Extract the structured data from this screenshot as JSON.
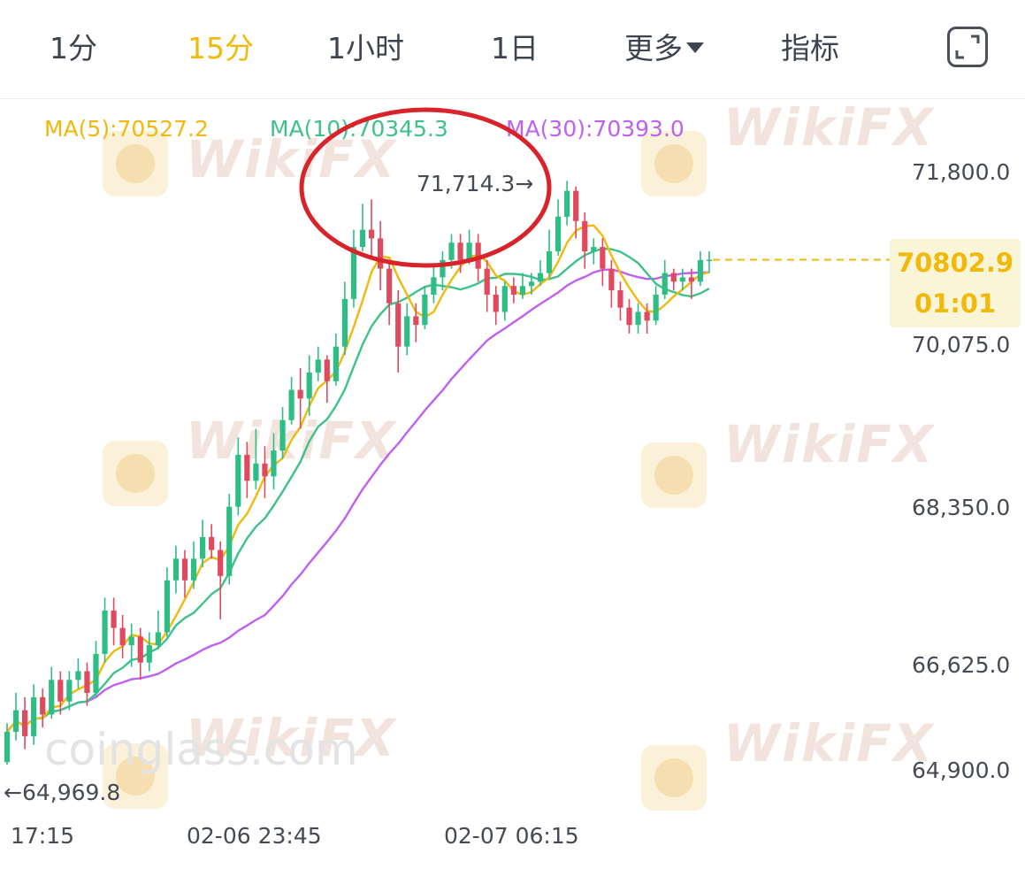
{
  "tabs": [
    "1分",
    "15分",
    "1小时",
    "1日",
    "更多",
    "指标"
  ],
  "active_tab": "15分",
  "ma": {
    "ma5": "MA(5):70527.2",
    "ma10": "MA(10):70345.3",
    "ma30": "MA(30):70393.0"
  },
  "current": {
    "price": "70802.9",
    "countdown": "01:01"
  },
  "annotations": {
    "high": "71,714.3→",
    "low": "←64,969.8"
  },
  "watermarks": {
    "brand": "WikiFX",
    "source": "coinglass.com"
  },
  "colors": {
    "up": "#2ebd85",
    "down": "#e04a5f",
    "ma5": "#f0b90b",
    "ma10": "#3ec28a",
    "ma30": "#c060f0",
    "highlight_circle": "#d8232a"
  },
  "icons": {
    "more_caret": "caret-down-icon",
    "expand": "expand-icon"
  },
  "chart_data": {
    "type": "candlestick",
    "y_tick_labels": [
      "71,800.0",
      "70,075.0",
      "68,350.0",
      "66,625.0",
      "64,900.0"
    ],
    "ylim": [
      64900,
      71800
    ],
    "x_tick_labels": [
      "17:15",
      "02-06 23:45",
      "02-07 06:15"
    ],
    "interval": "15分",
    "high": 71714.3,
    "low": 64969.8,
    "last": 70802.9,
    "candles": [
      [
        65000,
        65350,
        65450,
        64969.8
      ],
      [
        65350,
        65600,
        65800,
        65250
      ],
      [
        65600,
        65300,
        65750,
        65150
      ],
      [
        65300,
        65750,
        65900,
        65200
      ],
      [
        65750,
        65550,
        65850,
        65400
      ],
      [
        65550,
        65950,
        66100,
        65500
      ],
      [
        65950,
        65700,
        66050,
        65550
      ],
      [
        65700,
        65950,
        66050,
        65600
      ],
      [
        65950,
        66050,
        66200,
        65850
      ],
      [
        66050,
        65800,
        66150,
        65650
      ],
      [
        65800,
        66250,
        66400,
        65750
      ],
      [
        66250,
        66750,
        66900,
        66150
      ],
      [
        66750,
        66550,
        66900,
        66350
      ],
      [
        66550,
        66350,
        66700,
        66200
      ],
      [
        66350,
        66450,
        66600,
        66100
      ],
      [
        66450,
        66150,
        66550,
        65950
      ],
      [
        66150,
        66350,
        66500,
        66050
      ],
      [
        66350,
        66500,
        66750,
        66300
      ],
      [
        66500,
        67100,
        67250,
        66450
      ],
      [
        67100,
        67350,
        67500,
        66950
      ],
      [
        67350,
        67100,
        67450,
        66900
      ],
      [
        67100,
        67350,
        67550,
        67000
      ],
      [
        67350,
        67600,
        67800,
        67250
      ],
      [
        67600,
        67450,
        67750,
        67350
      ],
      [
        67450,
        67150,
        67550,
        66650
      ],
      [
        67150,
        67950,
        68100,
        67050
      ],
      [
        67950,
        68550,
        68750,
        67850
      ],
      [
        68550,
        68250,
        68700,
        68050
      ],
      [
        68250,
        68450,
        68850,
        68150
      ],
      [
        68450,
        68300,
        68650,
        68050
      ],
      [
        68300,
        68600,
        68800,
        68150
      ],
      [
        68600,
        68950,
        69100,
        68500
      ],
      [
        68950,
        69300,
        69450,
        68900
      ],
      [
        69300,
        69200,
        69550,
        68850
      ],
      [
        69200,
        69500,
        69700,
        69000
      ],
      [
        69500,
        69650,
        69800,
        69400
      ],
      [
        69650,
        69400,
        69700,
        69150
      ],
      [
        69400,
        69800,
        69950,
        69350
      ],
      [
        69800,
        70350,
        70550,
        69700
      ],
      [
        70350,
        70950,
        71150,
        70250
      ],
      [
        70950,
        71150,
        71450,
        70900
      ],
      [
        71150,
        71050,
        71500,
        70850
      ],
      [
        71050,
        70700,
        71250,
        70450
      ],
      [
        70700,
        70300,
        70800,
        70050
      ],
      [
        70300,
        69800,
        70450,
        69500
      ],
      [
        69800,
        70150,
        70300,
        69700
      ],
      [
        70150,
        70050,
        70300,
        69850
      ],
      [
        70050,
        70400,
        70500,
        70000
      ],
      [
        70400,
        70600,
        70750,
        70300
      ],
      [
        70600,
        70800,
        70900,
        70450
      ],
      [
        70800,
        71000,
        71100,
        70700
      ],
      [
        71000,
        70800,
        71100,
        70650
      ],
      [
        70800,
        71000,
        71150,
        70750
      ],
      [
        71000,
        70700,
        71100,
        70550
      ],
      [
        70700,
        70400,
        70800,
        70200
      ],
      [
        70400,
        70200,
        70500,
        70050
      ],
      [
        70200,
        70500,
        70550,
        70100
      ],
      [
        70500,
        70400,
        70600,
        70300
      ],
      [
        70400,
        70500,
        70650,
        70350
      ],
      [
        70500,
        70550,
        70650,
        70400
      ],
      [
        70550,
        70650,
        70800,
        70500
      ],
      [
        70650,
        70900,
        71150,
        70600
      ],
      [
        70900,
        71300,
        71500,
        70850
      ],
      [
        71300,
        71600,
        71714.3,
        71200
      ],
      [
        71600,
        71250,
        71650,
        71050
      ],
      [
        71250,
        70900,
        71350,
        70700
      ],
      [
        70900,
        70950,
        71050,
        70750
      ],
      [
        70950,
        70700,
        71050,
        70500
      ],
      [
        70700,
        70450,
        70800,
        70250
      ],
      [
        70450,
        70250,
        70550,
        70100
      ],
      [
        70250,
        70050,
        70350,
        69950
      ],
      [
        70050,
        70200,
        70300,
        69950
      ],
      [
        70200,
        70100,
        70300,
        69950
      ],
      [
        70100,
        70400,
        70500,
        70050
      ],
      [
        70400,
        70650,
        70800,
        70350
      ],
      [
        70650,
        70550,
        70700,
        70450
      ],
      [
        70550,
        70600,
        70700,
        70450
      ],
      [
        70600,
        70550,
        70700,
        70350
      ],
      [
        70550,
        70800,
        70900,
        70500
      ],
      [
        70800,
        70802.9,
        70900,
        70650
      ]
    ]
  }
}
